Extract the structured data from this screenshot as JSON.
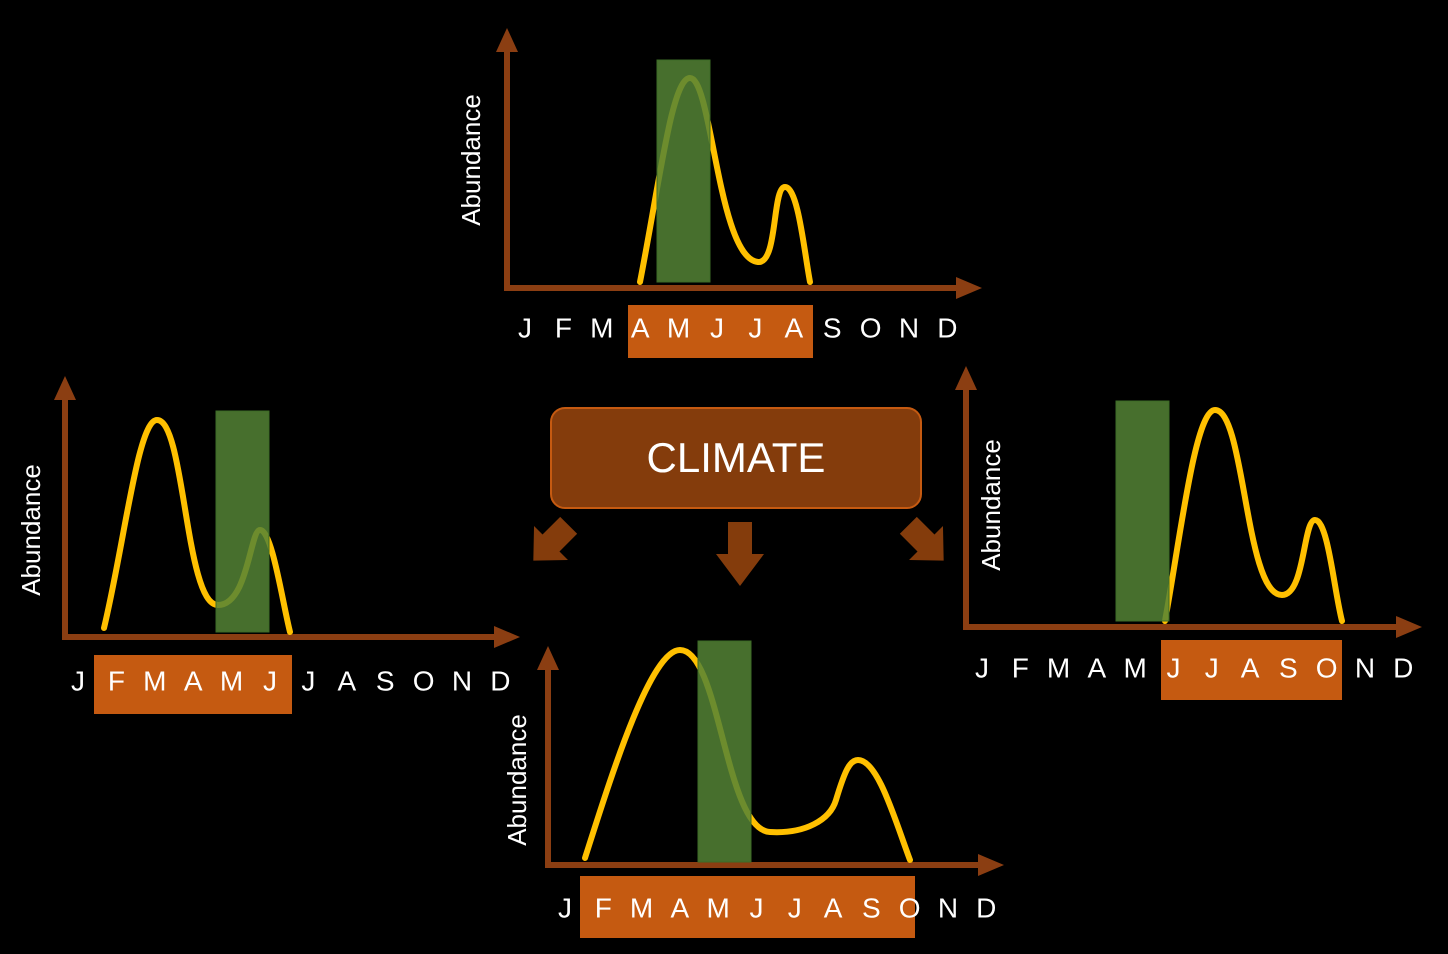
{
  "climate_label": "CLIMATE",
  "panels": [
    {
      "y_label": "Abundance",
      "months": [
        "J",
        "F",
        "M",
        "A",
        "M",
        "J",
        "J",
        "A",
        "S",
        "O",
        "N",
        "D"
      ]
    },
    {
      "y_label": "Abundance",
      "months": [
        "J",
        "F",
        "M",
        "A",
        "M",
        "J",
        "J",
        "A",
        "S",
        "O",
        "N",
        "D"
      ]
    },
    {
      "y_label": "Abundance",
      "months": [
        "J",
        "F",
        "M",
        "A",
        "M",
        "J",
        "J",
        "A",
        "S",
        "O",
        "N",
        "D"
      ]
    },
    {
      "y_label": "Abundance",
      "months": [
        "J",
        "F",
        "M",
        "A",
        "M",
        "J",
        "J",
        "A",
        "S",
        "O",
        "N",
        "D"
      ]
    }
  ]
}
